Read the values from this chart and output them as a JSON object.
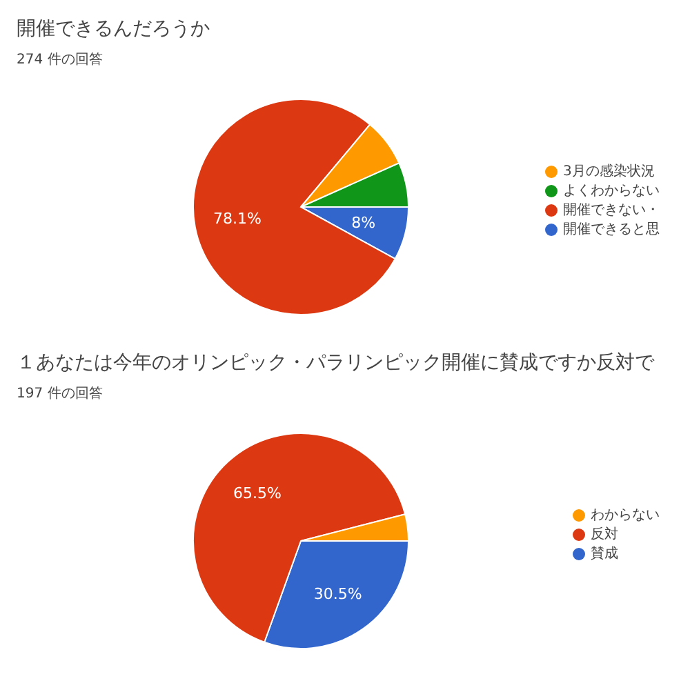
{
  "chart_data": [
    {
      "type": "pie",
      "title": "開催できるんだろうか",
      "subtitle": "274 件の回答",
      "categories": [
        "開催できると思",
        "開催できない・",
        "3月の感染状況",
        "よくわからない"
      ],
      "values": [
        8,
        78.1,
        7.2,
        6.7
      ],
      "colors": [
        "#3366cc",
        "#dc3912",
        "#ff9900",
        "#109618"
      ],
      "value_labels": [
        "8%",
        "78.1%",
        null,
        null
      ],
      "legend": "right"
    },
    {
      "type": "pie",
      "title": "１あなたは今年のオリンピック・パラリンピック開催に賛成ですか反対で",
      "subtitle": "197 件の回答",
      "categories": [
        "賛成",
        "反対",
        "わからない"
      ],
      "values": [
        30.5,
        65.5,
        4.0
      ],
      "colors": [
        "#3366cc",
        "#dc3912",
        "#ff9900"
      ],
      "value_labels": [
        "30.5%",
        "65.5%",
        null
      ],
      "legend": "right"
    }
  ]
}
